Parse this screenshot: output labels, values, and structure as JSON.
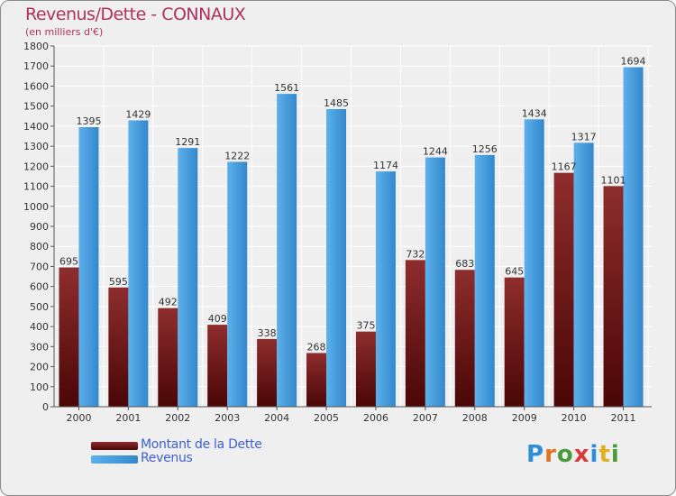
{
  "title": "Revenus/Dette - CONNAUX",
  "subtitle": "(en milliers d'€)",
  "logo": {
    "text": "Proxiti",
    "letters": [
      "P",
      "r",
      "o",
      "x",
      "i",
      "t",
      "i"
    ],
    "colors": [
      "#2e8fd6",
      "#e0731f",
      "#4a9a3c",
      "#d63a3a",
      "#2e8fd6",
      "#e0b020",
      "#4a9a3c"
    ]
  },
  "chart_data": {
    "type": "bar",
    "categories": [
      "2000",
      "2001",
      "2002",
      "2003",
      "2004",
      "2005",
      "2006",
      "2007",
      "2008",
      "2009",
      "2010",
      "2011"
    ],
    "series": [
      {
        "name": "Montant de la Dette",
        "values": [
          695,
          595,
          492,
          409,
          338,
          268,
          375,
          732,
          683,
          645,
          1167,
          1101
        ],
        "color": "#7a1f1f"
      },
      {
        "name": "Revenus",
        "values": [
          1395,
          1429,
          1291,
          1222,
          1561,
          1485,
          1174,
          1244,
          1256,
          1434,
          1317,
          1694
        ],
        "color": "#4a9fde"
      }
    ],
    "ylim": [
      0,
      1800
    ],
    "yticks": [
      0,
      100,
      200,
      300,
      400,
      500,
      600,
      700,
      800,
      900,
      1000,
      1100,
      1200,
      1300,
      1400,
      1500,
      1600,
      1700,
      1800
    ],
    "grid": true,
    "legend_position": "bottom-left"
  }
}
